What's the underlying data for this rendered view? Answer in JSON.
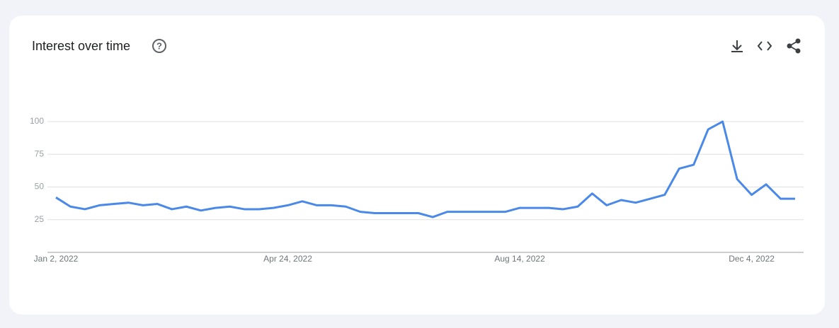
{
  "chart_data": {
    "type": "line",
    "title": "Interest over time",
    "categories": [
      "Jan 2, 2022",
      null,
      null,
      null,
      null,
      null,
      null,
      null,
      null,
      null,
      null,
      null,
      null,
      null,
      null,
      null,
      "Apr 24, 2022",
      null,
      null,
      null,
      null,
      null,
      null,
      null,
      null,
      null,
      null,
      null,
      null,
      null,
      null,
      null,
      "Aug 14, 2022",
      null,
      null,
      null,
      null,
      null,
      null,
      null,
      null,
      null,
      null,
      null,
      null,
      null,
      null,
      null,
      "Dec 4, 2022",
      null,
      null,
      null
    ],
    "series": [
      {
        "color": "#4a89e8",
        "values": [
          42,
          35,
          33,
          36,
          37,
          38,
          36,
          37,
          33,
          35,
          32,
          34,
          35,
          33,
          33,
          34,
          36,
          39,
          36,
          36,
          35,
          31,
          30,
          30,
          30,
          30,
          27,
          31,
          31,
          31,
          31,
          31,
          34,
          34,
          34,
          33,
          35,
          45,
          36,
          40,
          38,
          41,
          44,
          64,
          67,
          94,
          100,
          56,
          44,
          52,
          41,
          41
        ]
      }
    ],
    "ylim": [
      0,
      100
    ],
    "yticks": [
      25,
      50,
      75,
      100
    ],
    "grid": true
  }
}
